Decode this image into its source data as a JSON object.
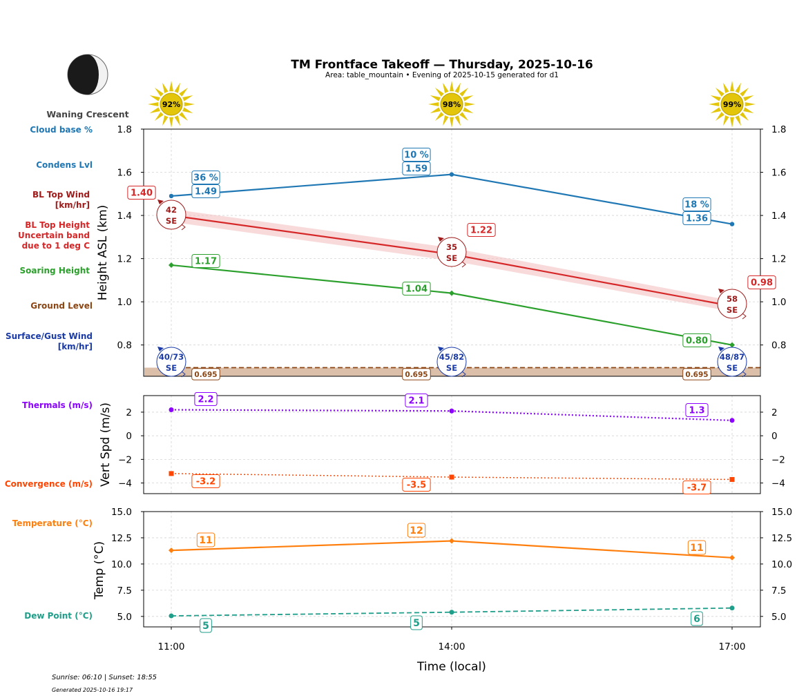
{
  "header": {
    "title": "TM Frontface Takeoff — Thursday, 2025-10-16",
    "subtitle": "Area: table_mountain • Evening of 2025-10-15 generated for d1"
  },
  "moon": {
    "phase": "Waning Crescent"
  },
  "footer": {
    "sun_times": "Sunrise: 06:10 | Sunset: 18:55",
    "generated": "Generated 2025-10-16 19:17"
  },
  "side_labels": {
    "cloud_base": "Cloud base %",
    "condens": "Condens Lvl",
    "bl_wind_1": "BL Top Wind",
    "bl_wind_2": "[km/hr]",
    "bl_height_1": "BL Top Height",
    "bl_height_2": "Uncertain band",
    "bl_height_3": "due to 1 deg C",
    "soaring": "Soaring Height",
    "ground": "Ground Level",
    "surface_1": "Surface/Gust Wind",
    "surface_2": "[km/hr]",
    "thermals": "Thermals (m/s)",
    "convergence": "Convergence (m/s)",
    "temperature": "Temperature (°C)",
    "dewpoint": "Dew Point (°C)"
  },
  "colors": {
    "condens": "#1f77b4",
    "bl_top": "#d62728",
    "bl_band": "#f4c2c3",
    "bl_wind": "#a01a1a",
    "soaring": "#2ca02c",
    "ground_line": "#8b4513",
    "ground_fill": "#dcbfa9",
    "surface_wind": "#1a3aa8",
    "thermals": "#8b00ff",
    "convergence": "#ff4500",
    "temperature": "#ff7f0e",
    "dewpoint": "#1f9e89",
    "sun": "#e3c60b"
  },
  "chart_data": [
    {
      "type": "line",
      "name": "heights",
      "ylabel": "Height ASL (km)",
      "ylim": [
        0.655,
        1.8
      ],
      "yticks": [
        "1.8",
        "1.6",
        "1.4",
        "1.2",
        "1.0",
        "0.8"
      ],
      "ytick_values": [
        1.8,
        1.6,
        1.4,
        1.2,
        1.0,
        0.8
      ],
      "x": [
        "11:00",
        "14:00",
        "17:00"
      ],
      "sun_percent": [
        "92%",
        "98%",
        "99%"
      ],
      "condensation_level": {
        "values": [
          1.49,
          1.59,
          1.36
        ],
        "labels": [
          "1.49",
          "1.59",
          "1.36"
        ]
      },
      "cloud_base_percent": {
        "labels": [
          "36 %",
          "10 %",
          "18 %"
        ]
      },
      "bl_top_height": {
        "values": [
          1.4,
          1.22,
          0.98
        ],
        "labels": [
          "1.40",
          "1.22",
          "0.98"
        ],
        "band_low": [
          1.37,
          1.19,
          0.955
        ],
        "band_high": [
          1.43,
          1.25,
          1.005
        ]
      },
      "bl_top_wind": {
        "speeds": [
          "42",
          "35",
          "58"
        ],
        "directions": [
          "SE",
          "SE",
          "SE"
        ]
      },
      "soaring_height": {
        "values": [
          1.17,
          1.04,
          0.8
        ],
        "labels": [
          "1.17",
          "1.04",
          "0.80"
        ]
      },
      "ground_level": {
        "values": [
          0.695,
          0.695,
          0.695
        ],
        "labels": [
          "0.695",
          "0.695",
          "0.695"
        ]
      },
      "surface_gust_wind": {
        "labels": [
          "40/73",
          "45/82",
          "48/87"
        ],
        "directions": [
          "SE",
          "SE",
          "SE"
        ]
      }
    },
    {
      "type": "line",
      "name": "vertical speed",
      "ylabel": "Vert Spd (m/s)",
      "ylim": [
        -4.9,
        3.4
      ],
      "yticks": [
        "2",
        "0",
        "−2",
        "−4"
      ],
      "ytick_values": [
        2,
        0,
        -2,
        -4
      ],
      "x": [
        "11:00",
        "14:00",
        "17:00"
      ],
      "series": [
        {
          "name": "Thermals (m/s)",
          "values": [
            2.2,
            2.1,
            1.3
          ],
          "labels": [
            "2.2",
            "2.1",
            "1.3"
          ]
        },
        {
          "name": "Convergence (m/s)",
          "values": [
            -3.2,
            -3.5,
            -3.7
          ],
          "labels": [
            "-3.2",
            "-3.5",
            "-3.7"
          ]
        }
      ]
    },
    {
      "type": "line",
      "name": "temperature",
      "ylabel": "Temp (°C)",
      "xlabel": "Time (local)",
      "ylim": [
        4.0,
        15.0
      ],
      "yticks": [
        "15.0",
        "12.5",
        "10.0",
        "7.5",
        "5.0"
      ],
      "ytick_values": [
        15.0,
        12.5,
        10.0,
        7.5,
        5.0
      ],
      "x": [
        "11:00",
        "14:00",
        "17:00"
      ],
      "series": [
        {
          "name": "Temperature (°C)",
          "values": [
            11.3,
            12.2,
            10.6
          ],
          "labels": [
            "11",
            "12",
            "11"
          ]
        },
        {
          "name": "Dew Point (°C)",
          "values": [
            5.05,
            5.4,
            5.8
          ],
          "labels": [
            "5",
            "5",
            "6"
          ]
        }
      ]
    }
  ]
}
